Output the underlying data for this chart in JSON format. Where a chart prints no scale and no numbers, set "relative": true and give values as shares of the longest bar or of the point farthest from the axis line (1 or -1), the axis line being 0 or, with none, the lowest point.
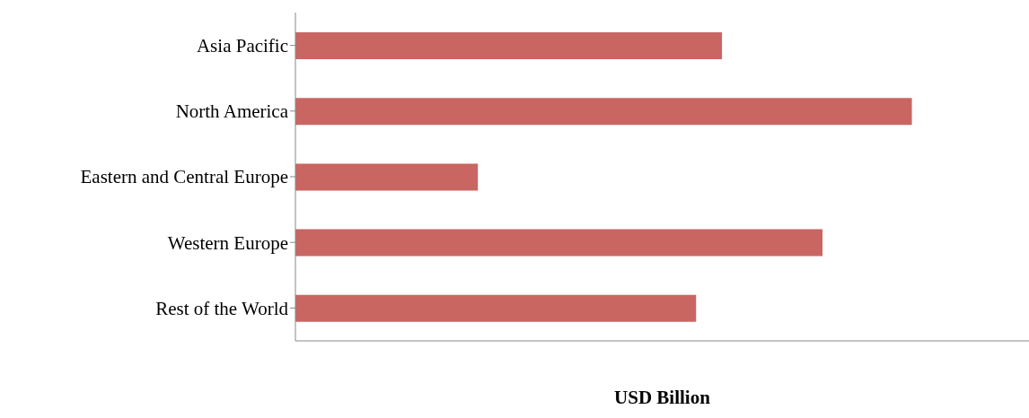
{
  "chart_data": {
    "type": "bar",
    "orientation": "horizontal",
    "relative": true,
    "xlabel": "USD Billion",
    "categories": [
      "Asia Pacific",
      "North America",
      "Eastern and Central Europe",
      "Western Europe",
      "Rest of the World"
    ],
    "values": [
      0.692,
      1,
      0.296,
      0.855,
      0.65
    ],
    "color": "#c96662",
    "grid": false,
    "legend": false
  }
}
